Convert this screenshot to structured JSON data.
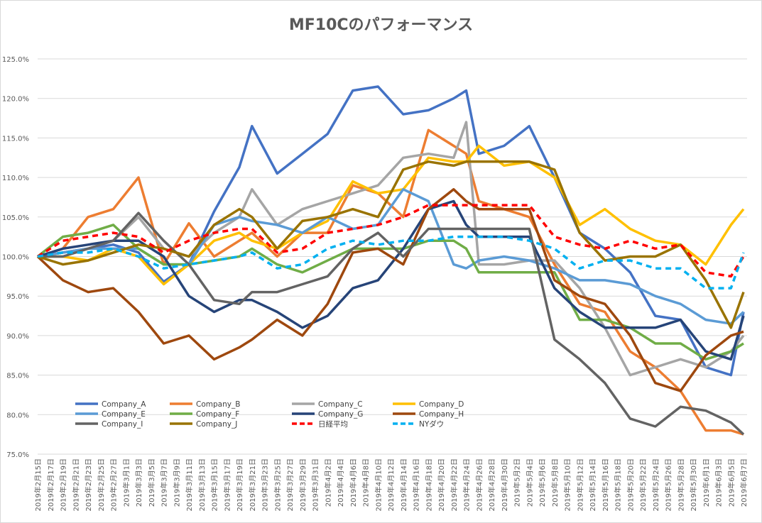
{
  "chart_data": {
    "type": "line",
    "title": "MF10Cのパフォーマンス",
    "xlabel": "",
    "ylabel": "",
    "ylim": [
      75,
      125
    ],
    "y_ticks": [
      "75.0%",
      "80.0%",
      "85.0%",
      "90.0%",
      "95.0%",
      "100.0%",
      "105.0%",
      "110.0%",
      "115.0%",
      "120.0%",
      "125.0%"
    ],
    "x_range": [
      "2019-02-15",
      "2019-06-07"
    ],
    "x_tick_labels": [
      "2019年2月15日",
      "2019年2月17日",
      "2019年2月19日",
      "2019年2月21日",
      "2019年2月23日",
      "2019年2月25日",
      "2019年2月27日",
      "2019年3月1日",
      "2019年3月3日",
      "2019年3月5日",
      "2019年3月7日",
      "2019年3月9日",
      "2019年3月11日",
      "2019年3月13日",
      "2019年3月15日",
      "2019年3月17日",
      "2019年3月19日",
      "2019年3月21日",
      "2019年3月23日",
      "2019年3月25日",
      "2019年3月27日",
      "2019年3月29日",
      "2019年3月31日",
      "2019年4月2日",
      "2019年4月4日",
      "2019年4月6日",
      "2019年4月8日",
      "2019年4月10日",
      "2019年4月12日",
      "2019年4月14日",
      "2019年4月16日",
      "2019年4月18日",
      "2019年4月20日",
      "2019年4月22日",
      "2019年4月24日",
      "2019年4月26日",
      "2019年4月28日",
      "2019年4月30日",
      "2019年5月2日",
      "2019年5月4日",
      "2019年5月6日",
      "2019年5月8日",
      "2019年5月10日",
      "2019年5月12日",
      "2019年5月14日",
      "2019年5月16日",
      "2019年5月18日",
      "2019年5月20日",
      "2019年5月22日",
      "2019年5月24日",
      "2019年5月26日",
      "2019年5月28日",
      "2019年5月30日",
      "2019年6月1日",
      "2019年6月3日",
      "2019年6月5日",
      "2019年6月7日"
    ],
    "grid": true,
    "legend_placement": "bottom-left inside plot",
    "x": [
      "2019-02-15",
      "2019-02-19",
      "2019-02-23",
      "2019-02-27",
      "2019-03-03",
      "2019-03-07",
      "2019-03-11",
      "2019-03-15",
      "2019-03-19",
      "2019-03-21",
      "2019-03-25",
      "2019-03-29",
      "2019-04-02",
      "2019-04-06",
      "2019-04-10",
      "2019-04-14",
      "2019-04-18",
      "2019-04-22",
      "2019-04-24",
      "2019-04-26",
      "2019-04-30",
      "2019-05-04",
      "2019-05-08",
      "2019-05-12",
      "2019-05-16",
      "2019-05-20",
      "2019-05-24",
      "2019-05-28",
      "2019-06-01",
      "2019-06-05",
      "2019-06-07"
    ],
    "series": [
      {
        "name": "Company_A",
        "color": "#4472C4",
        "dash": false,
        "values": [
          100,
          100.5,
          101,
          101.5,
          100.5,
          96.8,
          99,
          105.7,
          111.3,
          116.5,
          110.5,
          113,
          115.5,
          121,
          121.5,
          118,
          118.5,
          120,
          121,
          113,
          114,
          116.5,
          110,
          103,
          101,
          98,
          92.5,
          92,
          86,
          85,
          93
        ]
      },
      {
        "name": "Company_B",
        "color": "#ED7D31",
        "dash": false,
        "values": [
          100,
          101,
          105,
          106,
          110,
          99,
          104.2,
          100,
          102,
          103,
          100,
          103,
          103,
          109,
          108,
          105,
          116,
          114,
          113,
          107,
          106,
          105,
          99,
          94,
          93,
          88,
          86,
          83,
          78,
          78,
          77.5
        ]
      },
      {
        "name": "Company_C",
        "color": "#A5A5A5",
        "dash": false,
        "values": [
          100,
          100.5,
          101,
          102,
          105,
          101,
          100,
          103,
          105,
          108.5,
          104,
          106,
          107,
          108,
          109,
          112.5,
          113,
          112.5,
          117,
          99,
          99,
          99.5,
          99.5,
          96,
          91,
          85,
          86,
          87,
          86,
          88,
          90
        ]
      },
      {
        "name": "Company_D",
        "color": "#FFC000",
        "dash": false,
        "values": [
          100,
          100,
          99.5,
          101,
          100,
          96.5,
          99,
          102,
          103,
          102,
          101,
          103,
          104.5,
          109.5,
          108,
          108.5,
          112.5,
          112,
          112,
          114,
          111.5,
          112,
          110,
          104,
          106,
          103.5,
          102,
          101.5,
          99,
          104,
          106
        ]
      },
      {
        "name": "Company_E",
        "color": "#5B9BD5",
        "dash": false,
        "values": [
          100,
          100.5,
          101,
          101,
          101,
          99,
          99,
          104,
          105,
          104.5,
          104,
          103,
          105,
          103.5,
          104,
          108.5,
          107,
          99,
          98.5,
          99.5,
          100,
          99.5,
          98.5,
          97,
          97,
          96.5,
          95,
          94,
          92,
          91.5,
          93
        ]
      },
      {
        "name": "Company_F",
        "color": "#70AD47",
        "dash": false,
        "values": [
          100,
          102.5,
          103,
          104,
          101,
          99,
          99,
          99.5,
          100,
          101,
          99,
          98,
          99.5,
          101,
          101,
          101,
          102,
          102,
          101,
          98,
          98,
          98,
          98,
          92,
          92,
          91,
          89,
          89,
          87,
          88,
          89
        ]
      },
      {
        "name": "Company_G",
        "color": "#264478",
        "dash": false,
        "values": [
          100,
          101,
          101.5,
          102,
          102,
          100,
          95,
          93,
          94.5,
          94.5,
          93,
          91,
          92.5,
          96,
          97,
          101,
          106,
          107,
          104,
          102.5,
          102.5,
          102.5,
          96,
          93,
          91,
          91,
          91,
          92,
          88,
          87,
          92.5
        ]
      },
      {
        "name": "Company_H",
        "color": "#9E480E",
        "dash": false,
        "values": [
          100,
          97,
          95.5,
          96,
          93,
          89,
          90,
          87,
          88.5,
          89.5,
          92,
          90,
          94,
          100.5,
          101,
          99,
          106,
          108.5,
          107,
          106,
          106,
          106,
          97,
          95,
          94,
          90,
          84,
          83,
          87.5,
          90,
          90.5
        ]
      },
      {
        "name": "Company_I",
        "color": "#636363",
        "dash": false,
        "values": [
          100,
          100,
          101,
          102,
          105.5,
          102,
          99,
          94.5,
          94,
          95.5,
          95.5,
          96.5,
          97.5,
          101,
          103,
          100,
          103.5,
          103.5,
          103.5,
          103.5,
          103.5,
          103.5,
          89.5,
          87,
          84,
          79.5,
          78.5,
          81,
          80.5,
          79,
          77.5
        ]
      },
      {
        "name": "Company_J",
        "color": "#997300",
        "dash": false,
        "values": [
          100,
          99,
          99.5,
          100.5,
          101.5,
          101,
          100,
          104,
          106,
          105,
          101,
          104.5,
          105,
          106,
          105,
          111,
          112,
          111.5,
          112,
          112,
          112,
          112,
          111,
          103,
          99.5,
          100,
          100,
          101.5,
          97,
          91,
          95.5
        ]
      },
      {
        "name": "日経平均",
        "color": "#FF0000",
        "dash": true,
        "values": [
          100,
          102,
          102.5,
          103,
          102.5,
          100.5,
          102,
          103,
          103.5,
          103.5,
          100.5,
          101,
          103,
          103.5,
          104,
          105,
          106.5,
          106.5,
          106.5,
          106.5,
          106.5,
          106.5,
          102.5,
          101.5,
          101,
          102,
          101,
          101.5,
          98,
          97.5,
          100
        ]
      },
      {
        "name": "NYダウ",
        "color": "#00B0F0",
        "dash": true,
        "values": [
          100,
          100.5,
          100.5,
          101,
          100,
          98.5,
          99,
          99.5,
          100,
          100.5,
          98.5,
          99,
          101,
          102,
          101.5,
          102,
          102,
          102.5,
          102.5,
          102.5,
          102.5,
          102,
          101,
          98.5,
          99.5,
          99.5,
          98.5,
          98.5,
          96,
          96,
          100.5
        ]
      }
    ]
  }
}
